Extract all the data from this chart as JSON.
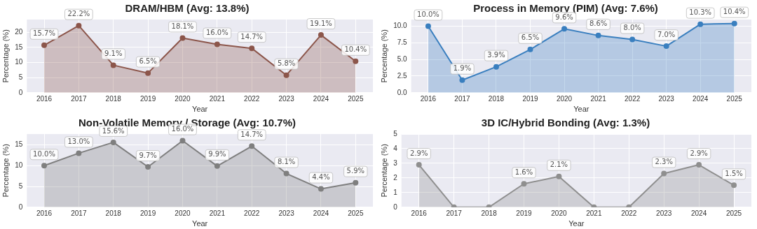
{
  "chart_data": [
    {
      "type": "area",
      "title": "DRAM/HBM (Avg: 13.8%)",
      "xlabel": "Year",
      "ylabel": "Percentage (%)",
      "categories": [
        "2016",
        "2017",
        "2018",
        "2019",
        "2020",
        "2021",
        "2022",
        "2023",
        "2024",
        "2025"
      ],
      "series": [
        {
          "color": "#8c564b",
          "values": [
            15.7,
            22.2,
            9.1,
            6.5,
            18.1,
            16.0,
            14.7,
            5.8,
            19.1,
            10.4
          ],
          "value_labels": [
            "15.7%",
            "22.2%",
            "9.1%",
            "6.5%",
            "18.1%",
            "16.0%",
            "14.7%",
            "5.8%",
            "19.1%",
            "10.4%"
          ]
        }
      ],
      "ylim": [
        0,
        24.2
      ],
      "yticks": [
        0,
        5,
        10,
        15,
        20
      ],
      "grid": true,
      "legend": false,
      "marker": "circle"
    },
    {
      "type": "area",
      "title": "Process in Memory (PIM) (Avg: 7.6%)",
      "xlabel": "Year",
      "ylabel": "Percentage (%)",
      "categories": [
        "2016",
        "2017",
        "2018",
        "2019",
        "2020",
        "2021",
        "2022",
        "2023",
        "2024",
        "2025"
      ],
      "series": [
        {
          "color": "#3a7fbf",
          "values": [
            10.0,
            1.9,
            3.9,
            6.5,
            9.6,
            8.6,
            8.0,
            7.0,
            10.3,
            10.4
          ],
          "value_labels": [
            "10.0%",
            "1.9%",
            "3.9%",
            "6.5%",
            "9.6%",
            "8.6%",
            "8.0%",
            "7.0%",
            "10.3%",
            "10.4%"
          ]
        }
      ],
      "ylim": [
        0,
        11.0
      ],
      "yticks": [
        {
          "value": 0,
          "label": "0.0"
        },
        2.5,
        {
          "value": 5,
          "label": "5.0"
        },
        7.5,
        {
          "value": 10,
          "label": "10.0"
        }
      ],
      "grid": true,
      "legend": false,
      "marker": "circle"
    },
    {
      "type": "area",
      "title": "Non-Volatile Memory / Storage (Avg: 10.7%)",
      "xlabel": "Year",
      "ylabel": "Percentage (%)",
      "categories": [
        "2016",
        "2017",
        "2018",
        "2019",
        "2020",
        "2021",
        "2022",
        "2023",
        "2024",
        "2025"
      ],
      "series": [
        {
          "color": "#7f7f7f",
          "values": [
            10.0,
            13.0,
            15.6,
            9.7,
            16.0,
            9.9,
            14.7,
            8.1,
            4.4,
            5.9
          ],
          "value_labels": [
            "10.0%",
            "13.0%",
            "15.6%",
            "9.7%",
            "16.0%",
            "9.9%",
            "14.7%",
            "8.1%",
            "4.4%",
            "5.9%"
          ]
        }
      ],
      "ylim": [
        0,
        17.6
      ],
      "yticks": [
        0,
        5,
        10,
        15
      ],
      "grid": true,
      "legend": false,
      "marker": "circle"
    },
    {
      "type": "area",
      "title": "3D IC/Hybrid Bonding (Avg: 1.3%)",
      "xlabel": "Year",
      "ylabel": "Percentage (%)",
      "categories": [
        "2016",
        "2017",
        "2018",
        "2019",
        "2020",
        "2021",
        "2022",
        "2023",
        "2024",
        "2025"
      ],
      "series": [
        {
          "color": "#8f8f8f",
          "values": [
            2.9,
            0,
            0,
            1.6,
            2.1,
            0,
            0,
            2.3,
            2.9,
            1.5
          ],
          "value_labels": [
            "2.9%",
            null,
            null,
            "1.6%",
            "2.1%",
            null,
            null,
            "2.3%",
            "2.9%",
            "1.5%"
          ]
        }
      ],
      "ylim": [
        0,
        5
      ],
      "yticks": [
        0,
        1,
        2,
        3,
        4,
        5
      ],
      "grid": true,
      "legend": false,
      "marker": "circle"
    }
  ]
}
